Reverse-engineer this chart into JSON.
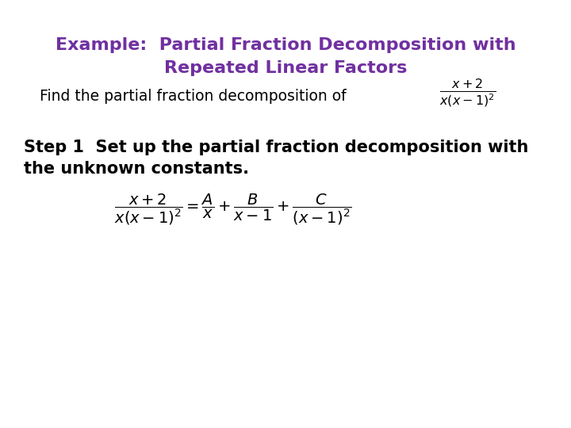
{
  "background_color": "#ffffff",
  "title_line1": "Example:  Partial Fraction Decomposition with",
  "title_line2": "Repeated Linear Factors",
  "title_color": "#7030a0",
  "title_fontsize": 16,
  "find_text": "Find the partial fraction decomposition of",
  "find_fontsize": 13.5,
  "find_color": "#000000",
  "step1_line1": "Step 1  Set up the partial fraction decomposition with",
  "step1_line2": "the unknown constants.",
  "step1_fontsize": 15,
  "step1_color": "#000000",
  "equation_fontsize": 13,
  "equation_color": "#000000"
}
